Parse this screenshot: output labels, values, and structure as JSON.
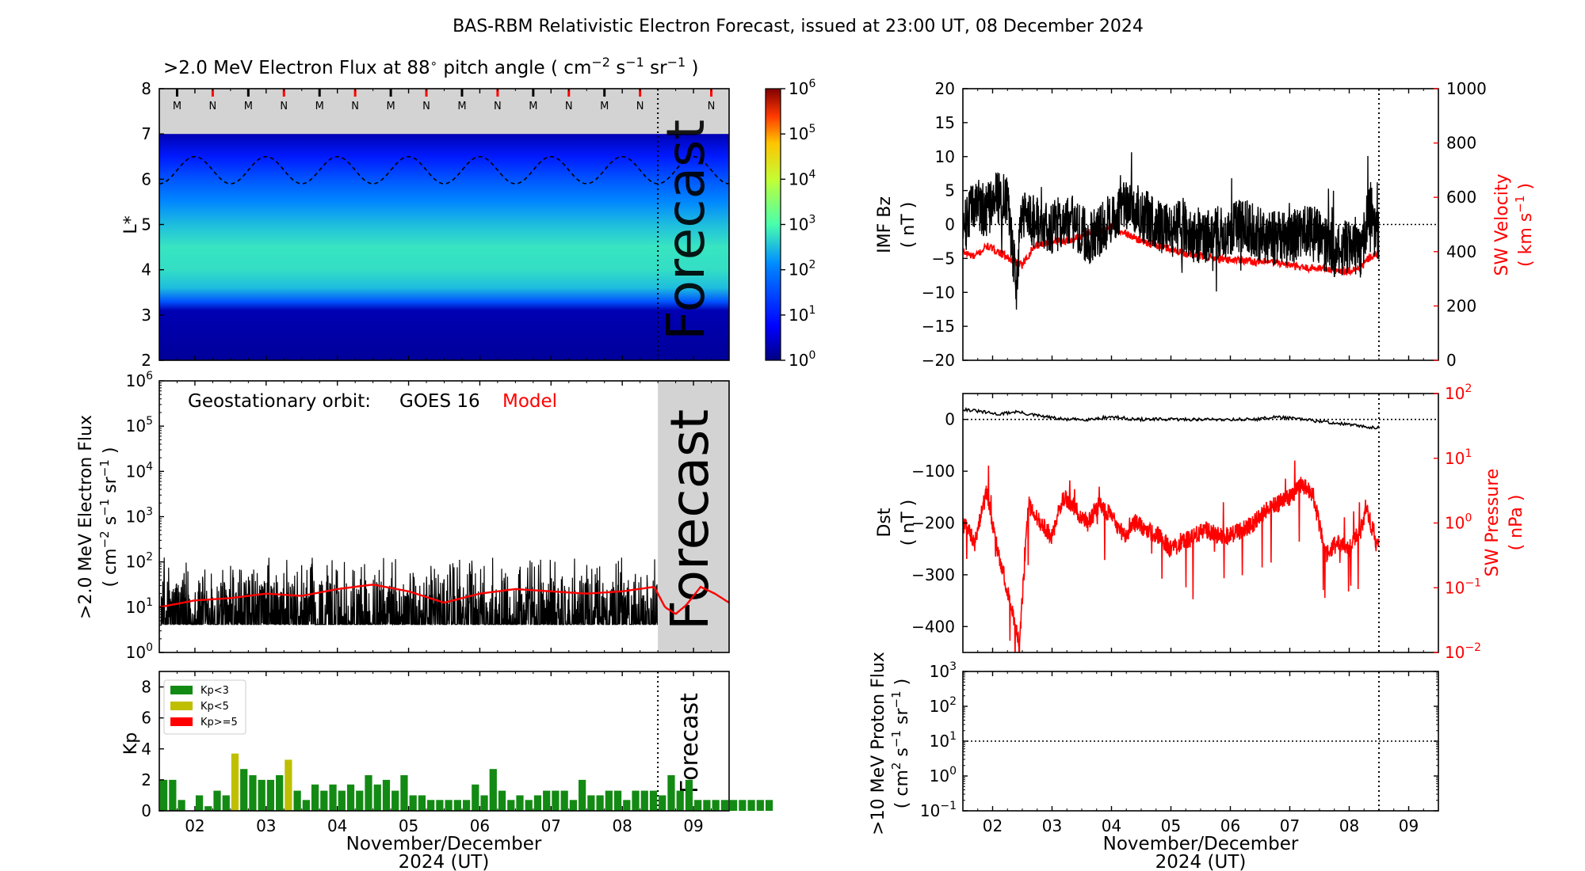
{
  "title": "BAS-RBM Relativistic Electron Forecast, issued at 23:00 UT, 08 December 2024",
  "colors": {
    "black": "#000000",
    "red": "#ff0000",
    "forecast_grey": "#d3d3d3",
    "kp_green": "#138a13",
    "kp_yellow": "#bfbf00",
    "kp_red": "#ff0000"
  },
  "time_axis": {
    "ticks": [
      "02",
      "03",
      "04",
      "05",
      "06",
      "07",
      "08",
      "09"
    ],
    "xlabel": "November/December",
    "xlabel2": "2024 (UT)",
    "xlim_days": [
      1.5,
      9.5
    ],
    "forecast_start_day": 8.5
  },
  "chart_data": [
    {
      "id": "lstar",
      "type": "heatmap",
      "title": ">2.0 MeV Electron Flux at 88° pitch angle ( cm⁻² s⁻¹ sr⁻¹ )",
      "title_pre": ">2.0 MeV Electron Flux at 88",
      "title_deg": "∘",
      "title_post": " pitch angle ( cm",
      "title_sup1": "−2",
      "title_mid1": " s",
      "title_sup2": "−1",
      "title_mid2": " sr",
      "title_sup3": "−1",
      "title_end": " )",
      "ylabel": "L*",
      "yticks": [
        "2",
        "3",
        "4",
        "5",
        "6",
        "7",
        "8"
      ],
      "ylim": [
        2,
        8
      ],
      "log10_flux_profile": [
        {
          "L": 2.0,
          "v": 0.15
        },
        {
          "L": 3.1,
          "v": 0.3
        },
        {
          "L": 3.3,
          "v": 1.6
        },
        {
          "L": 3.6,
          "v": 2.5
        },
        {
          "L": 4.0,
          "v": 2.75
        },
        {
          "L": 4.5,
          "v": 2.8
        },
        {
          "L": 5.0,
          "v": 2.5
        },
        {
          "L": 5.5,
          "v": 2.1
        },
        {
          "L": 6.0,
          "v": 1.6
        },
        {
          "L": 6.5,
          "v": 1.0
        },
        {
          "L": 7.0,
          "v": 0.3
        }
      ],
      "no_data_above_L": 7,
      "magnetopause_line": {
        "mean_L": 6.2,
        "amplitude": 0.3,
        "period_days": 1
      },
      "mn_markers": [
        "M",
        "N",
        "M",
        "N",
        "M",
        "N",
        "M",
        "N",
        "M",
        "N",
        "M",
        "N",
        "M",
        "N",
        "N"
      ],
      "colorbar": {
        "label_base": "10",
        "exponents": [
          "0",
          "1",
          "2",
          "3",
          "4",
          "5",
          "6"
        ],
        "range_log10": [
          0,
          6
        ]
      },
      "forecast_label": "Forecast"
    },
    {
      "id": "geo_flux",
      "type": "line",
      "ylabel": ">2.0 MeV Electron Flux",
      "ylabel2_pre": "( cm",
      "ylabel2_sup1": "−2",
      "ylabel2_mid": " s",
      "ylabel2_sup2": "−1",
      "ylabel2_mid2": " sr",
      "ylabel2_sup3": "−1",
      "ylabel2_end": " )",
      "ylim_log10": [
        0,
        6
      ],
      "yticks_exp": [
        "0",
        "1",
        "2",
        "3",
        "4",
        "5",
        "6"
      ],
      "legend_orbit": "Geostationary orbit:",
      "legend_sat": "GOES 16",
      "legend_model": "Model",
      "forecast_label": "Forecast",
      "series": [
        {
          "name": "GOES 16",
          "color": "#000000",
          "log10_floor": 0.62,
          "log10_typical_peak": 1.6,
          "log10_max_peak": 2.1
        },
        {
          "name": "Model",
          "color": "#ff0000",
          "points_day_log10": [
            [
              1.5,
              1.0
            ],
            [
              2.0,
              1.15
            ],
            [
              2.5,
              1.2
            ],
            [
              3.0,
              1.3
            ],
            [
              3.5,
              1.25
            ],
            [
              4.0,
              1.4
            ],
            [
              4.5,
              1.5
            ],
            [
              5.0,
              1.35
            ],
            [
              5.5,
              1.1
            ],
            [
              6.0,
              1.3
            ],
            [
              6.5,
              1.4
            ],
            [
              7.0,
              1.35
            ],
            [
              7.5,
              1.3
            ],
            [
              8.0,
              1.35
            ],
            [
              8.45,
              1.45
            ],
            [
              8.6,
              1.0
            ],
            [
              8.75,
              0.85
            ],
            [
              8.9,
              1.05
            ],
            [
              9.1,
              1.45
            ],
            [
              9.3,
              1.3
            ],
            [
              9.5,
              1.1
            ]
          ]
        }
      ]
    },
    {
      "id": "kp",
      "type": "bar",
      "ylabel": "Kp",
      "yticks": [
        "0",
        "2",
        "4",
        "6",
        "8"
      ],
      "ylim": [
        0,
        9
      ],
      "legend": [
        "Kp<3",
        "Kp<5",
        "Kp>=5"
      ],
      "forecast_label": "Forecast",
      "bin_hours": 3,
      "start_day": 1.5,
      "values": [
        2.0,
        2.0,
        0.7,
        0,
        1.0,
        0.3,
        1.3,
        1.0,
        3.7,
        2.7,
        2.3,
        2.0,
        2.0,
        2.3,
        3.3,
        1.3,
        0.7,
        1.7,
        1.3,
        1.7,
        1.3,
        1.7,
        1.3,
        2.3,
        1.7,
        2.0,
        1.3,
        2.3,
        1.0,
        1.0,
        0.7,
        0.7,
        0.7,
        0.7,
        0.7,
        1.7,
        1.0,
        2.7,
        1.3,
        0.7,
        1.0,
        0.7,
        1.0,
        1.3,
        1.3,
        1.3,
        0.7,
        2.0,
        1.0,
        1.0,
        1.3,
        1.3,
        0.7,
        1.3,
        1.3,
        1.3,
        1.0,
        2.3,
        1.3,
        2.0,
        0.7,
        0.7,
        0.7,
        0.7,
        0.7,
        0.7,
        0.7,
        0.7,
        0.7
      ]
    },
    {
      "id": "imf",
      "type": "line",
      "ylabel": "IMF Bz",
      "ylabel2": "( nT )",
      "yticks": [
        "20",
        "15",
        "10",
        "5",
        "0",
        "−5",
        "−10",
        "−15",
        "−20"
      ],
      "ylim": [
        -20,
        20
      ],
      "right_ylabel": "SW Velocity",
      "right_ylabel2_pre": "( km s",
      "right_ylabel2_sup": "−1",
      "right_ylabel2_end": " )",
      "right_yticks": [
        "1000",
        "800",
        "600",
        "400",
        "200",
        "0"
      ],
      "right_ylim": [
        0,
        1000
      ],
      "series": [
        {
          "name": "IMF Bz",
          "color": "#000000",
          "points": [
            [
              1.5,
              -1
            ],
            [
              1.7,
              3
            ],
            [
              1.9,
              2
            ],
            [
              2.1,
              4
            ],
            [
              2.25,
              3
            ],
            [
              2.4,
              -9
            ],
            [
              2.5,
              2
            ],
            [
              2.6,
              1
            ],
            [
              2.8,
              0
            ],
            [
              3.0,
              -1
            ],
            [
              3.2,
              1
            ],
            [
              3.4,
              0
            ],
            [
              3.6,
              -2
            ],
            [
              3.8,
              -1
            ],
            [
              4.0,
              1
            ],
            [
              4.2,
              3
            ],
            [
              4.4,
              2
            ],
            [
              4.6,
              1
            ],
            [
              4.8,
              0
            ],
            [
              5.0,
              -1
            ],
            [
              5.2,
              0
            ],
            [
              5.4,
              -2
            ],
            [
              5.6,
              -2
            ],
            [
              5.8,
              -1
            ],
            [
              6.0,
              -1
            ],
            [
              6.2,
              0
            ],
            [
              6.4,
              -1
            ],
            [
              6.6,
              -2
            ],
            [
              6.8,
              -2
            ],
            [
              7.0,
              -2
            ],
            [
              7.2,
              -1
            ],
            [
              7.4,
              -1
            ],
            [
              7.6,
              -3
            ],
            [
              7.8,
              -4
            ],
            [
              8.0,
              -3
            ],
            [
              8.2,
              -4
            ],
            [
              8.35,
              3
            ],
            [
              8.45,
              -2
            ]
          ]
        },
        {
          "name": "SW Velocity",
          "color": "#ff0000",
          "points": [
            [
              1.5,
              400
            ],
            [
              1.7,
              380
            ],
            [
              1.9,
              420
            ],
            [
              2.1,
              400
            ],
            [
              2.3,
              370
            ],
            [
              2.5,
              350
            ],
            [
              2.7,
              420
            ],
            [
              3.0,
              440
            ],
            [
              3.3,
              440
            ],
            [
              3.6,
              470
            ],
            [
              3.9,
              480
            ],
            [
              4.0,
              500
            ],
            [
              4.2,
              470
            ],
            [
              4.5,
              440
            ],
            [
              4.8,
              420
            ],
            [
              5.0,
              410
            ],
            [
              5.3,
              390
            ],
            [
              5.6,
              380
            ],
            [
              5.9,
              370
            ],
            [
              6.2,
              370
            ],
            [
              6.5,
              360
            ],
            [
              6.8,
              360
            ],
            [
              7.0,
              350
            ],
            [
              7.2,
              340
            ],
            [
              7.5,
              340
            ],
            [
              7.8,
              330
            ],
            [
              8.0,
              330
            ],
            [
              8.2,
              340
            ],
            [
              8.3,
              370
            ],
            [
              8.45,
              390
            ]
          ]
        }
      ]
    },
    {
      "id": "dst",
      "type": "line",
      "ylabel": "Dst",
      "ylabel2": "( nT )",
      "yticks": [
        "0",
        "−100",
        "−200",
        "−300",
        "−400"
      ],
      "ylim": [
        -450,
        50
      ],
      "right_ylabel": "SW Pressure",
      "right_ylabel2": "( nPa )",
      "right_yticks_exp": [
        "2",
        "1",
        "0",
        "−1",
        "−2"
      ],
      "right_ylim_log10": [
        -2,
        2
      ],
      "series": [
        {
          "name": "Dst",
          "color": "#000000",
          "points": [
            [
              1.5,
              20
            ],
            [
              1.8,
              15
            ],
            [
              2.1,
              10
            ],
            [
              2.4,
              15
            ],
            [
              2.6,
              10
            ],
            [
              2.9,
              5
            ],
            [
              3.2,
              0
            ],
            [
              3.6,
              0
            ],
            [
              4.0,
              5
            ],
            [
              4.4,
              0
            ],
            [
              4.8,
              0
            ],
            [
              5.2,
              0
            ],
            [
              5.6,
              0
            ],
            [
              6.0,
              0
            ],
            [
              6.4,
              0
            ],
            [
              6.8,
              5
            ],
            [
              7.2,
              0
            ],
            [
              7.6,
              -5
            ],
            [
              8.0,
              -10
            ],
            [
              8.3,
              -15
            ],
            [
              8.45,
              -15
            ]
          ]
        },
        {
          "name": "SW Pressure",
          "color": "#ff0000",
          "points": [
            [
              1.5,
              0.0
            ],
            [
              1.7,
              -0.3
            ],
            [
              1.9,
              0.5
            ],
            [
              2.1,
              -0.5
            ],
            [
              2.3,
              -1.2
            ],
            [
              2.45,
              -1.9
            ],
            [
              2.6,
              0.3
            ],
            [
              2.8,
              0.0
            ],
            [
              3.0,
              -0.2
            ],
            [
              3.2,
              0.4
            ],
            [
              3.4,
              0.2
            ],
            [
              3.6,
              0.0
            ],
            [
              3.8,
              0.3
            ],
            [
              4.0,
              0.1
            ],
            [
              4.2,
              -0.2
            ],
            [
              4.4,
              0.0
            ],
            [
              4.6,
              -0.1
            ],
            [
              4.8,
              -0.2
            ],
            [
              5.0,
              -0.4
            ],
            [
              5.2,
              -0.3
            ],
            [
              5.4,
              -0.2
            ],
            [
              5.6,
              -0.1
            ],
            [
              5.8,
              -0.2
            ],
            [
              6.0,
              -0.2
            ],
            [
              6.2,
              -0.1
            ],
            [
              6.4,
              0.0
            ],
            [
              6.6,
              0.2
            ],
            [
              6.8,
              0.3
            ],
            [
              7.0,
              0.4
            ],
            [
              7.2,
              0.6
            ],
            [
              7.4,
              0.4
            ],
            [
              7.6,
              -0.5
            ],
            [
              7.8,
              -0.3
            ],
            [
              8.0,
              -0.4
            ],
            [
              8.2,
              -0.1
            ],
            [
              8.3,
              0.2
            ],
            [
              8.45,
              -0.3
            ]
          ]
        }
      ]
    },
    {
      "id": "proton",
      "type": "line",
      "ylabel": ">10 MeV Proton Flux",
      "ylabel2_pre": "( cm",
      "ylabel2_sup1": "2",
      "ylabel2_mid": " s",
      "ylabel2_sup2": "−1",
      "ylabel2_mid2": " sr",
      "ylabel2_sup3": "−1",
      "ylabel2_end": " )",
      "yticks_exp": [
        "3",
        "2",
        "1",
        "0",
        "−1"
      ],
      "ylim_log10": [
        -1,
        3
      ],
      "threshold_log10": 1,
      "series": []
    }
  ]
}
